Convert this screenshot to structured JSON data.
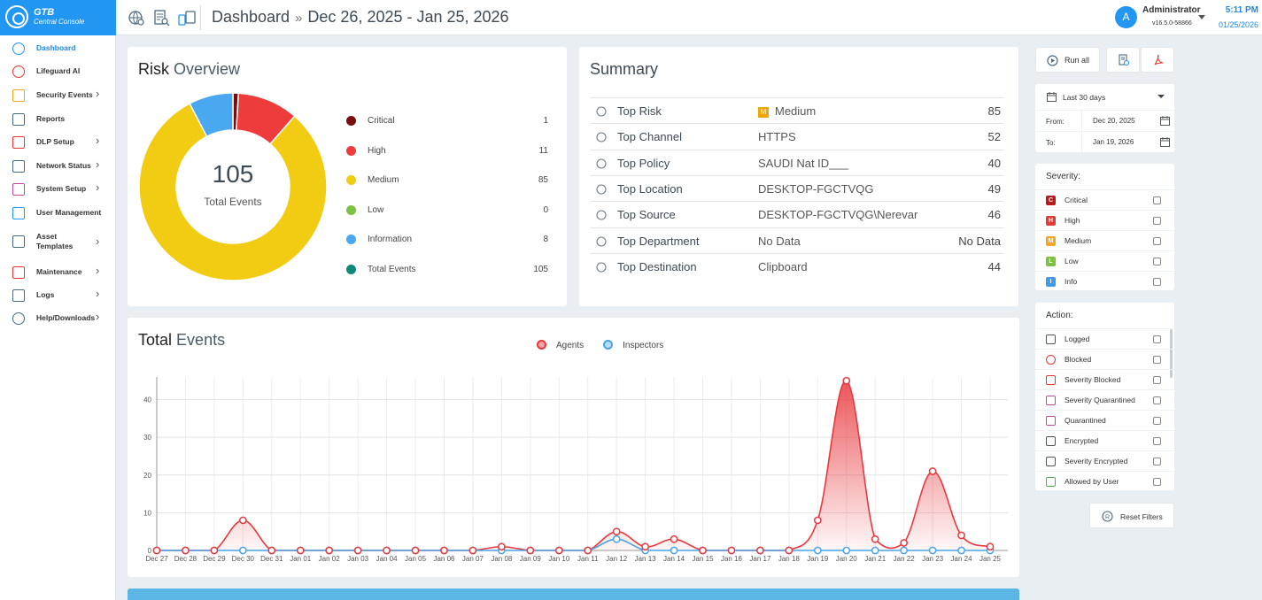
{
  "brand": {
    "name": "GTB",
    "subtitle": "Central Console"
  },
  "header": {
    "page": "Dashboard",
    "date_range": "Dec 26, 2025 - Jan 25, 2026",
    "user": {
      "initial": "A",
      "name": "Administrator",
      "version": "v16.5.0-58866"
    },
    "time": "5:11 PM",
    "date": "01/25/2026",
    "icons": [
      "globe-settings-icon",
      "report-search-icon",
      "devices-icon"
    ]
  },
  "sidebar": {
    "items": [
      {
        "label": "Dashboard",
        "icon": "gauge-icon",
        "chevron": false,
        "active": true
      },
      {
        "label": "Lifeguard AI",
        "icon": "lifebuoy-icon",
        "chevron": false
      },
      {
        "label": "Security Events",
        "icon": "alarm-icon",
        "chevron": true
      },
      {
        "label": "Reports",
        "icon": "bar-chart-icon",
        "chevron": false
      },
      {
        "label": "DLP Setup",
        "icon": "shield-icon",
        "chevron": true
      },
      {
        "label": "Network Status",
        "icon": "network-icon",
        "chevron": true
      },
      {
        "label": "System Setup",
        "icon": "monitor-settings-icon",
        "chevron": true
      },
      {
        "label": "User Management",
        "icon": "users-icon",
        "chevron": false
      },
      {
        "label": "Asset Templates",
        "icon": "template-icon",
        "chevron": true
      },
      {
        "label": "Maintenance",
        "icon": "tools-icon",
        "chevron": true
      },
      {
        "label": "Logs",
        "icon": "clipboard-icon",
        "chevron": true
      },
      {
        "label": "Help/Downloads",
        "icon": "help-icon",
        "chevron": true
      }
    ]
  },
  "risk": {
    "title_a": "Risk",
    "title_b": "Overview",
    "total": "105",
    "total_label": "Total Events",
    "legend": [
      {
        "label": "Critical",
        "value": "1",
        "color": "#7b0c0c"
      },
      {
        "label": "High",
        "value": "11",
        "color": "#ee3b3b"
      },
      {
        "label": "Medium",
        "value": "85",
        "color": "#f2cc12"
      },
      {
        "label": "Low",
        "value": "0",
        "color": "#7cc242"
      },
      {
        "label": "Information",
        "value": "8",
        "color": "#4aa8f0"
      },
      {
        "label": "Total Events",
        "value": "105",
        "color": "#0f8a7a"
      }
    ]
  },
  "summary": {
    "title": "Summary",
    "rows": [
      {
        "key": "Top Risk",
        "value": "Medium",
        "count": "85",
        "icon": "warning-icon",
        "badge": "M"
      },
      {
        "key": "Top Channel",
        "value": "HTTPS",
        "count": "52",
        "icon": "channel-icon"
      },
      {
        "key": "Top Policy",
        "value": "SAUDI Nat ID___",
        "count": "40",
        "icon": "shield-icon"
      },
      {
        "key": "Top Location",
        "value": "DESKTOP-FGCTVQG",
        "count": "49",
        "icon": "location-pin-icon"
      },
      {
        "key": "Top Source",
        "value": "DESKTOP-FGCTVQG\\Nerevar",
        "count": "46",
        "icon": "source-icon"
      },
      {
        "key": "Top Department",
        "value": "No Data",
        "count": "No Data",
        "icon": "hierarchy-icon"
      },
      {
        "key": "Top Destination",
        "value": "Clipboard",
        "count": "44",
        "icon": "destination-icon"
      }
    ]
  },
  "events": {
    "title_a": "Total",
    "title_b": "Events"
  },
  "chart_data": {
    "type": "line",
    "categories": [
      "Dec 27",
      "Dec 28",
      "Dec 29",
      "Dec 30",
      "Dec 31",
      "Jan 01",
      "Jan 02",
      "Jan 03",
      "Jan 04",
      "Jan 05",
      "Jan 06",
      "Jan 07",
      "Jan 08",
      "Jan 09",
      "Jan 10",
      "Jan 11",
      "Jan 12",
      "Jan 13",
      "Jan 14",
      "Jan 15",
      "Jan 16",
      "Jan 17",
      "Jan 18",
      "Jan 19",
      "Jan 20",
      "Jan 21",
      "Jan 22",
      "Jan 23",
      "Jan 24",
      "Jan 25"
    ],
    "series": [
      {
        "name": "Agents",
        "color": "#e8383d",
        "values": [
          0,
          0,
          0,
          8,
          0,
          0,
          0,
          0,
          0,
          0,
          0,
          0,
          1,
          0,
          0,
          0,
          5,
          1,
          3,
          0,
          0,
          0,
          0,
          8,
          45,
          3,
          2,
          21,
          4,
          1
        ]
      },
      {
        "name": "Inspectors",
        "color": "#4aa3e8",
        "values": [
          0,
          0,
          0,
          0,
          0,
          0,
          0,
          0,
          0,
          0,
          0,
          0,
          0,
          0,
          0,
          0,
          3,
          0,
          0,
          0,
          0,
          0,
          0,
          0,
          0,
          0,
          0,
          0,
          0,
          0
        ]
      }
    ],
    "yticks": [
      0,
      10,
      20,
      30,
      40
    ],
    "ylim": [
      0,
      46
    ],
    "grid": true,
    "legend": "top-center"
  },
  "controls": {
    "run_all": "Run all",
    "date_preset": "Last 30 days",
    "from_label": "From:",
    "from_value": "Dec 20, 2025",
    "to_label": "To:",
    "to_value": "Jan 19, 2026",
    "reset": "Reset Filters"
  },
  "severity": {
    "title": "Severity:",
    "items": [
      {
        "label": "Critical",
        "letter": "C",
        "color": "#b71c1c"
      },
      {
        "label": "High",
        "letter": "H",
        "color": "#e53935"
      },
      {
        "label": "Medium",
        "letter": "M",
        "color": "#f5a623"
      },
      {
        "label": "Low",
        "letter": "L",
        "color": "#7cc242"
      },
      {
        "label": "Info",
        "letter": "I",
        "color": "#3d9be9"
      }
    ]
  },
  "action": {
    "title": "Action:",
    "items": [
      {
        "label": "Logged",
        "icon": "log-icon",
        "color": "#555"
      },
      {
        "label": "Blocked",
        "icon": "blocked-icon",
        "color": "#e53935"
      },
      {
        "label": "Severity Blocked",
        "icon": "severity-blocked-icon",
        "color": "#e53935"
      },
      {
        "label": "Severity Quarantined",
        "icon": "severity-quarantine-icon",
        "color": "#c2479f"
      },
      {
        "label": "Quarantined",
        "icon": "quarantine-icon",
        "color": "#c2479f"
      },
      {
        "label": "Encrypted",
        "icon": "lock-icon",
        "color": "#555"
      },
      {
        "label": "Severity Encrypted",
        "icon": "severity-lock-icon",
        "color": "#555"
      },
      {
        "label": "Allowed by User",
        "icon": "user-allowed-icon",
        "color": "#4caf50"
      }
    ]
  }
}
